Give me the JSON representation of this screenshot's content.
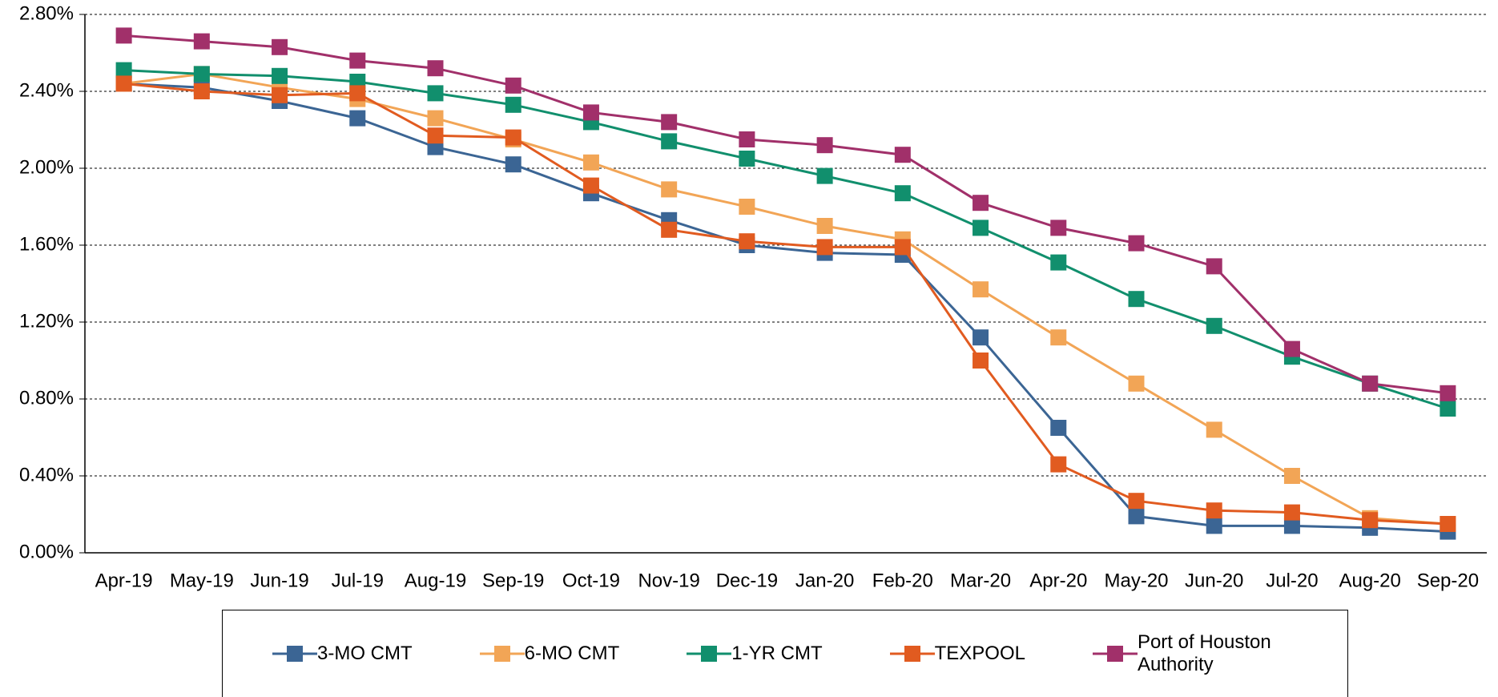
{
  "chart_data": {
    "type": "line",
    "categories": [
      "Apr-19",
      "May-19",
      "Jun-19",
      "Jul-19",
      "Aug-19",
      "Sep-19",
      "Oct-19",
      "Nov-19",
      "Dec-19",
      "Jan-20",
      "Feb-20",
      "Mar-20",
      "Apr-20",
      "May-20",
      "Jun-20",
      "Jul-20",
      "Aug-20",
      "Sep-20"
    ],
    "series": [
      {
        "name": "3-MO CMT",
        "color": "#3b6594",
        "values": [
          2.44,
          2.42,
          2.35,
          2.26,
          2.11,
          2.02,
          1.87,
          1.73,
          1.6,
          1.56,
          1.55,
          1.12,
          0.65,
          0.19,
          0.14,
          0.14,
          0.13,
          0.11
        ]
      },
      {
        "name": "6-MO CMT",
        "color": "#f2a556",
        "values": [
          2.44,
          2.49,
          2.42,
          2.36,
          2.26,
          2.15,
          2.03,
          1.89,
          1.8,
          1.7,
          1.63,
          1.37,
          1.12,
          0.88,
          0.64,
          0.4,
          0.18,
          0.15
        ]
      },
      {
        "name": "1-YR CMT",
        "color": "#118f6d",
        "values": [
          2.51,
          2.49,
          2.48,
          2.45,
          2.39,
          2.33,
          2.24,
          2.14,
          2.05,
          1.96,
          1.87,
          1.69,
          1.51,
          1.32,
          1.18,
          1.02,
          0.88,
          0.75
        ]
      },
      {
        "name": "TEXPOOL",
        "color": "#e15b20",
        "values": [
          2.44,
          2.4,
          2.38,
          2.39,
          2.17,
          2.16,
          1.91,
          1.68,
          1.62,
          1.59,
          1.59,
          1.0,
          0.46,
          0.27,
          0.22,
          0.21,
          0.17,
          0.15
        ]
      },
      {
        "name": "Port of Houston Authority",
        "color": "#a1306a",
        "values": [
          2.69,
          2.66,
          2.63,
          2.56,
          2.52,
          2.43,
          2.29,
          2.24,
          2.15,
          2.12,
          2.07,
          1.82,
          1.69,
          1.61,
          1.49,
          1.06,
          0.88,
          0.83
        ]
      }
    ],
    "ylim": [
      0,
      2.8
    ],
    "yticks": [
      {
        "value": 0,
        "label": "0.00%"
      },
      {
        "value": 0.4,
        "label": "0.40%"
      },
      {
        "value": 0.8,
        "label": "0.80%"
      },
      {
        "value": 1.2,
        "label": "1.20%"
      },
      {
        "value": 1.6,
        "label": "1.60%"
      },
      {
        "value": 2.0,
        "label": "2.00%"
      },
      {
        "value": 2.4,
        "label": "2.40%"
      },
      {
        "value": 2.8,
        "label": "2.80%"
      }
    ],
    "grid": true
  }
}
